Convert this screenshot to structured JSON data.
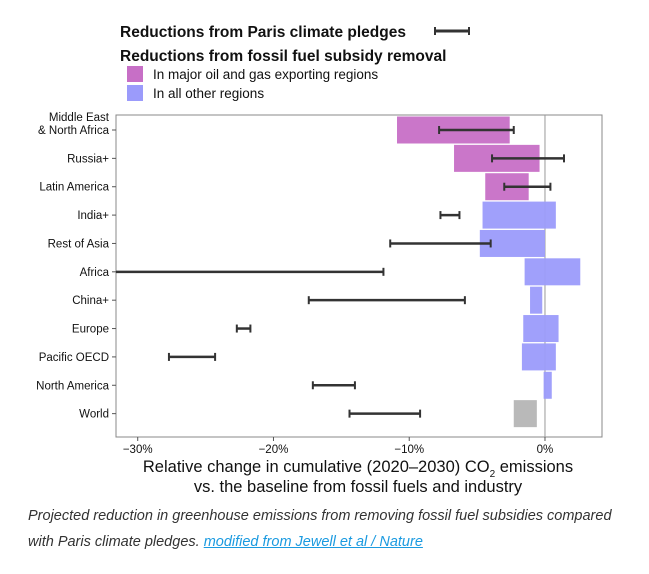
{
  "chart_data": {
    "type": "bar",
    "orientation": "horizontal",
    "title": "",
    "legend": {
      "errorbar_label": "Reductions from Paris climate pledges",
      "bars_heading": "Reductions from fossil fuel subsidy removal",
      "items": [
        {
          "label": "In major oil and gas exporting regions",
          "color": "#c76fc6"
        },
        {
          "label": "In all other regions",
          "color": "#9b9bfb"
        }
      ],
      "placement": "top"
    },
    "xlabel_line1": "Relative change in cumulative (2020–2030) CO",
    "xlabel_sub": "2",
    "xlabel_line1_end": " emissions",
    "xlabel_line2": "vs. the baseline from fossil fuels and industry",
    "xlim": [
      -31.6,
      4.2
    ],
    "xticks": [
      -30,
      -20,
      -10,
      0
    ],
    "xtick_labels": [
      "−30%",
      "−20%",
      "−10%",
      "0%"
    ],
    "grid": false,
    "categories": [
      {
        "label": [
          "Middle East",
          "& North Africa"
        ],
        "group": "oil",
        "bar": [
          -10.9,
          -2.6
        ],
        "pledge": [
          -7.8,
          -2.3
        ]
      },
      {
        "label": [
          "Russia+"
        ],
        "group": "oil",
        "bar": [
          -6.7,
          -0.4
        ],
        "pledge": [
          -3.9,
          1.4
        ]
      },
      {
        "label": [
          "Latin America"
        ],
        "group": "oil",
        "bar": [
          -4.4,
          -1.2
        ],
        "pledge": [
          -3.0,
          0.4
        ]
      },
      {
        "label": [
          "India+"
        ],
        "group": "other",
        "bar": [
          -4.6,
          0.8
        ],
        "pledge": [
          -7.7,
          -6.3
        ]
      },
      {
        "label": [
          "Rest of Asia"
        ],
        "group": "other",
        "bar": [
          -4.8,
          0.0
        ],
        "pledge": [
          -11.4,
          -4.0
        ]
      },
      {
        "label": [
          "Africa"
        ],
        "group": "other",
        "bar": [
          -1.5,
          2.6
        ],
        "pledge": [
          -32.0,
          -11.9
        ]
      },
      {
        "label": [
          "China+"
        ],
        "group": "other",
        "bar": [
          -1.1,
          -0.2
        ],
        "pledge": [
          -17.4,
          -5.9
        ]
      },
      {
        "label": [
          "Europe"
        ],
        "group": "other",
        "bar": [
          -1.6,
          1.0
        ],
        "pledge": [
          -22.7,
          -21.7
        ]
      },
      {
        "label": [
          "Pacific OECD"
        ],
        "group": "other",
        "bar": [
          -1.7,
          0.8
        ],
        "pledge": [
          -27.7,
          -24.3
        ]
      },
      {
        "label": [
          "North America"
        ],
        "group": "other",
        "bar": [
          -0.1,
          0.5
        ],
        "pledge": [
          -17.1,
          -14.0
        ]
      },
      {
        "label": [
          "World"
        ],
        "group": "world",
        "bar": [
          -2.3,
          -0.6
        ],
        "pledge": [
          -14.4,
          -9.2
        ]
      }
    ],
    "colors": {
      "oil": "#c76fc6",
      "other": "#9b9bfb",
      "world": "#b5b5b5",
      "errorbar": "#333333"
    }
  },
  "caption": {
    "text": "Projected reduction in greenhouse emissions from removing fossil fuel subsidies compared with Paris climate pledges. ",
    "link": "modified from Jewell et al / Nature"
  }
}
